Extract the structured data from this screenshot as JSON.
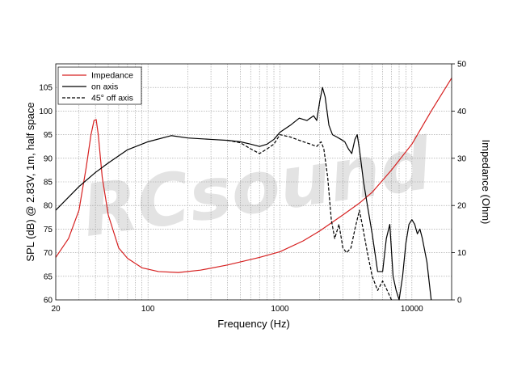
{
  "chart_data": {
    "type": "line",
    "title": "",
    "xlabel": "Frequency (Hz)",
    "ylabel": "SPL (dB) @ 2.83V, 1m, half space",
    "y2label": "Impedance (Ohm)",
    "xscale": "log",
    "xlim": [
      20,
      20000
    ],
    "ylim": [
      60,
      110
    ],
    "y2lim": [
      0,
      50
    ],
    "x_ticks": [
      20,
      100,
      1000,
      10000
    ],
    "x_tick_labels": [
      "20",
      "100",
      "1000",
      "10000"
    ],
    "y_ticks": [
      60,
      65,
      70,
      75,
      80,
      85,
      90,
      95,
      100,
      105
    ],
    "y_tick_labels": [
      "60",
      "65",
      "70",
      "75",
      "80",
      "85",
      "90",
      "95",
      "100",
      "105"
    ],
    "y2_ticks": [
      0,
      10,
      20,
      30,
      40,
      50
    ],
    "y2_tick_labels": [
      "0",
      "10",
      "20",
      "30",
      "40",
      "50"
    ],
    "grid": true,
    "legend_position": "top-left",
    "watermark": "RCsound",
    "series": [
      {
        "name": "Impedance",
        "color": "#d62020",
        "dash": "solid",
        "axis": "right",
        "points": [
          [
            20,
            9
          ],
          [
            25,
            13
          ],
          [
            30,
            19
          ],
          [
            34,
            28
          ],
          [
            37,
            35
          ],
          [
            39,
            38
          ],
          [
            40.5,
            38.2
          ],
          [
            42,
            35
          ],
          [
            45,
            26
          ],
          [
            50,
            18
          ],
          [
            60,
            11
          ],
          [
            70,
            8.8
          ],
          [
            90,
            6.8
          ],
          [
            120,
            6
          ],
          [
            170,
            5.8
          ],
          [
            250,
            6.3
          ],
          [
            400,
            7.4
          ],
          [
            700,
            9
          ],
          [
            1000,
            10.2
          ],
          [
            1500,
            12.5
          ],
          [
            2000,
            14.6
          ],
          [
            3000,
            18
          ],
          [
            4000,
            20.5
          ],
          [
            5000,
            22.8
          ],
          [
            7000,
            27.5
          ],
          [
            10000,
            33
          ],
          [
            14000,
            40
          ],
          [
            20000,
            47
          ]
        ]
      },
      {
        "name": "on axis",
        "color": "#000000",
        "dash": "solid",
        "axis": "left",
        "points": [
          [
            20,
            79
          ],
          [
            30,
            84
          ],
          [
            40,
            87
          ],
          [
            50,
            89
          ],
          [
            70,
            91.8
          ],
          [
            100,
            93.5
          ],
          [
            150,
            94.8
          ],
          [
            200,
            94.3
          ],
          [
            300,
            94
          ],
          [
            400,
            93.8
          ],
          [
            500,
            93.5
          ],
          [
            600,
            93
          ],
          [
            700,
            92.5
          ],
          [
            800,
            93
          ],
          [
            900,
            94
          ],
          [
            1000,
            95.5
          ],
          [
            1200,
            97
          ],
          [
            1400,
            98.5
          ],
          [
            1600,
            98
          ],
          [
            1800,
            99
          ],
          [
            1900,
            98
          ],
          [
            2000,
            102
          ],
          [
            2100,
            105
          ],
          [
            2200,
            103
          ],
          [
            2350,
            97
          ],
          [
            2500,
            95
          ],
          [
            2700,
            94.5
          ],
          [
            2900,
            94
          ],
          [
            3100,
            93.5
          ],
          [
            3300,
            92
          ],
          [
            3500,
            91
          ],
          [
            3700,
            94
          ],
          [
            3850,
            95
          ],
          [
            4000,
            92
          ],
          [
            4300,
            85
          ],
          [
            4600,
            80
          ],
          [
            5000,
            74
          ],
          [
            5500,
            66
          ],
          [
            6000,
            66
          ],
          [
            6400,
            73
          ],
          [
            6800,
            76
          ],
          [
            7200,
            65
          ],
          [
            7600,
            62
          ],
          [
            8000,
            60
          ],
          [
            8500,
            65
          ],
          [
            9000,
            72
          ],
          [
            9500,
            76
          ],
          [
            10000,
            77
          ],
          [
            10500,
            76
          ],
          [
            11000,
            74
          ],
          [
            11500,
            75
          ],
          [
            12000,
            73
          ],
          [
            13000,
            68
          ],
          [
            14000,
            60
          ]
        ]
      },
      {
        "name": "45° off axis",
        "color": "#000000",
        "dash": "dashed",
        "axis": "left",
        "points": [
          [
            400,
            93.8
          ],
          [
            500,
            93.3
          ],
          [
            600,
            92
          ],
          [
            700,
            91
          ],
          [
            800,
            92
          ],
          [
            900,
            93
          ],
          [
            1000,
            95
          ],
          [
            1200,
            94.5
          ],
          [
            1400,
            93.8
          ],
          [
            1700,
            93
          ],
          [
            1900,
            92.5
          ],
          [
            2050,
            93.5
          ],
          [
            2150,
            92
          ],
          [
            2300,
            86
          ],
          [
            2450,
            77
          ],
          [
            2600,
            73
          ],
          [
            2800,
            76
          ],
          [
            3000,
            71
          ],
          [
            3200,
            70
          ],
          [
            3450,
            71
          ],
          [
            3700,
            75
          ],
          [
            4000,
            79
          ],
          [
            4200,
            76
          ],
          [
            4600,
            70
          ],
          [
            5000,
            65
          ],
          [
            5500,
            62
          ],
          [
            6000,
            64
          ],
          [
            6500,
            62
          ],
          [
            7000,
            60
          ]
        ]
      }
    ]
  }
}
